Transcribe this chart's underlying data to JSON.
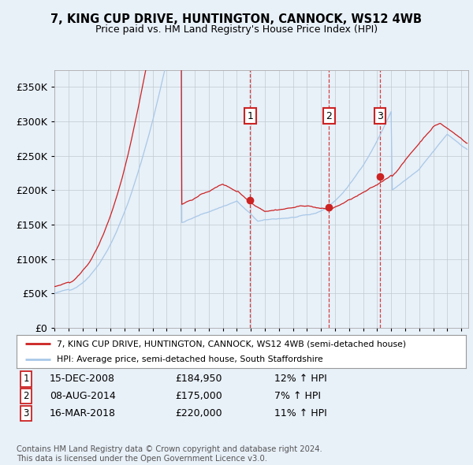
{
  "title": "7, KING CUP DRIVE, HUNTINGTON, CANNOCK, WS12 4WB",
  "subtitle": "Price paid vs. HM Land Registry's House Price Index (HPI)",
  "legend_line1": "7, KING CUP DRIVE, HUNTINGTON, CANNOCK, WS12 4WB (semi-detached house)",
  "legend_line2": "HPI: Average price, semi-detached house, South Staffordshire",
  "footer": "Contains HM Land Registry data © Crown copyright and database right 2024.\nThis data is licensed under the Open Government Licence v3.0.",
  "sale_markers": [
    {
      "num": 1,
      "date": "15-DEC-2008",
      "price": "£184,950",
      "hpi": "12% ↑ HPI",
      "x_year": 2008.96,
      "y_val": 184950
    },
    {
      "num": 2,
      "date": "08-AUG-2014",
      "price": "£175,000",
      "hpi": "7% ↑ HPI",
      "x_year": 2014.58,
      "y_val": 175000
    },
    {
      "num": 3,
      "date": "16-MAR-2018",
      "price": "£220,000",
      "hpi": "11% ↑ HPI",
      "x_year": 2018.21,
      "y_val": 220000
    }
  ],
  "hpi_color": "#a8c8e8",
  "price_color": "#cc2222",
  "marker_box_color": "#cc2222",
  "vline_color": "#cc2222",
  "background_color": "#e8f0f8",
  "plot_bg": "#e8f0f8",
  "ylim": [
    0,
    375000
  ],
  "xlim_start": 1995.0,
  "xlim_end": 2024.5,
  "yticks": [
    0,
    50000,
    100000,
    150000,
    200000,
    250000,
    300000,
    350000
  ],
  "ylabel_fmt": [
    "0",
    "50K",
    "100K",
    "150K",
    "200K",
    "250K",
    "300K",
    "350K"
  ]
}
